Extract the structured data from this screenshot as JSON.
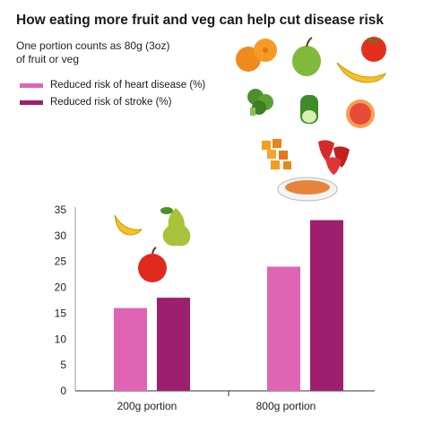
{
  "title": "How eating more fruit and veg can help cut disease risk",
  "subtitle_line1": "One portion counts as 80g (3oz)",
  "subtitle_line2": "of fruit or veg",
  "colors": {
    "heart": "#e064b4",
    "stroke": "#9e1f6e"
  },
  "icons": [
    "orange-icon",
    "apple-icon",
    "banana-icon",
    "tomato-icon",
    "broccoli-icon",
    "cucumber-icon",
    "grapefruit-icon",
    "carrots-icon",
    "strawberries-icon",
    "soup-bowl-icon",
    "pear-icon"
  ],
  "chart_data": {
    "type": "bar",
    "categories": [
      "200g portion",
      "800g portion"
    ],
    "series": [
      {
        "name": "Reduced risk of heart disease (%)",
        "values": [
          16,
          24
        ]
      },
      {
        "name": "Reduced risk of stroke (%)",
        "values": [
          18,
          33
        ]
      }
    ],
    "ylim": [
      0,
      35
    ],
    "yticks": [
      0,
      5,
      10,
      15,
      20,
      25,
      30,
      35
    ],
    "grid": false,
    "legend": "top-left"
  }
}
